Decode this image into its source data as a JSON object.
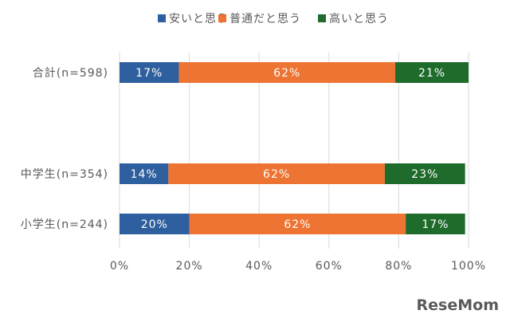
{
  "chart_data": {
    "type": "bar",
    "orientation": "horizontal",
    "stacked": true,
    "categories": [
      "合計(n=598)",
      "中学生(n=354)",
      "小学生(n=244)"
    ],
    "series": [
      {
        "name": "安いと思う",
        "values": [
          17,
          14,
          20
        ],
        "labels": [
          "17%",
          "14%",
          "20%"
        ],
        "color": "#2e5f9e"
      },
      {
        "name": "普通だと思う",
        "values": [
          62,
          62,
          62
        ],
        "labels": [
          "62%",
          "62%",
          "62%"
        ],
        "color": "#ed7432"
      },
      {
        "name": "高いと思う",
        "values": [
          21,
          23,
          17
        ],
        "labels": [
          "21%",
          "23%",
          "17%"
        ],
        "color": "#1e6b2b"
      }
    ],
    "x_ticks": [
      "0%",
      "20%",
      "40%",
      "60%",
      "80%",
      "100%"
    ],
    "xlim": [
      0,
      100
    ],
    "grid": true,
    "legend_position": "top"
  },
  "watermark": "ReseMom"
}
